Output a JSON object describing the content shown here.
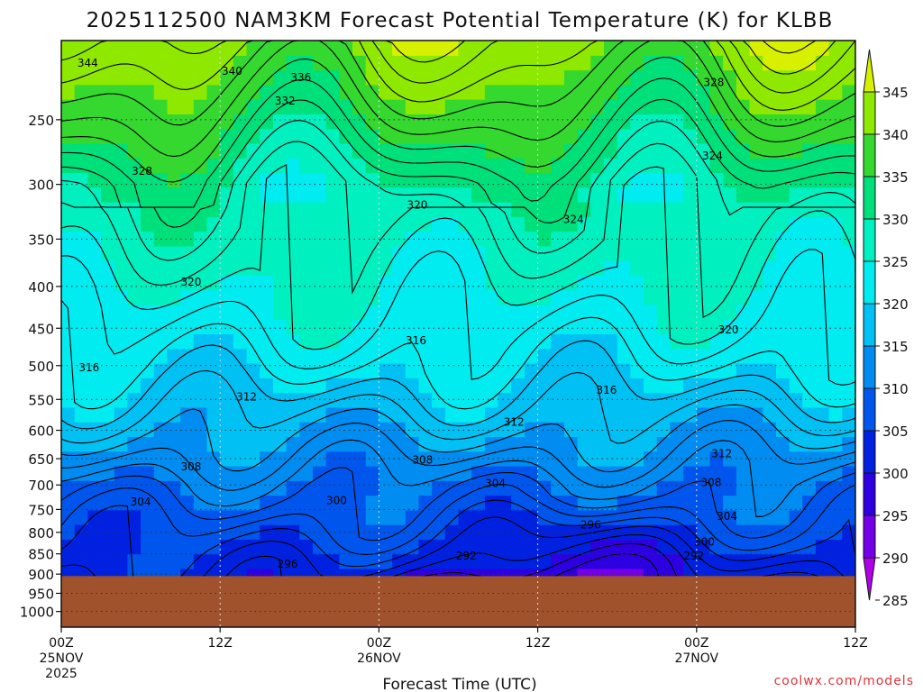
{
  "chart_data": {
    "type": "heatmap",
    "title": "2025112500 NAM3KM Forecast Potential Temperature (K) for KLBB",
    "xlabel": "Forecast Time (UTC)",
    "ylabel": "",
    "x_unit": "forecast hour",
    "xlim": [
      0,
      60
    ],
    "y_unit": "hPa",
    "y_scale": "log",
    "ylim": [
      1045,
      200
    ],
    "y_ticks": [
      {
        "value": 250,
        "label": "250"
      },
      {
        "value": 300,
        "label": "300"
      },
      {
        "value": 350,
        "label": "350"
      },
      {
        "value": 400,
        "label": "400"
      },
      {
        "value": 450,
        "label": "450"
      },
      {
        "value": 500,
        "label": "500"
      },
      {
        "value": 550,
        "label": "550"
      },
      {
        "value": 600,
        "label": "600"
      },
      {
        "value": 650,
        "label": "650"
      },
      {
        "value": 700,
        "label": "700"
      },
      {
        "value": 750,
        "label": "750"
      },
      {
        "value": 800,
        "label": "800"
      },
      {
        "value": 850,
        "label": "850"
      },
      {
        "value": 900,
        "label": "900"
      },
      {
        "value": 950,
        "label": "950"
      },
      {
        "value": 1000,
        "label": "1000"
      }
    ],
    "x_ticks": [
      {
        "value": 0,
        "label": "00Z",
        "label2": "25NOV",
        "label3": "2025"
      },
      {
        "value": 12,
        "label": "12Z",
        "label2": "",
        "label3": ""
      },
      {
        "value": 24,
        "label": "00Z",
        "label2": "26NOV",
        "label3": ""
      },
      {
        "value": 36,
        "label": "12Z",
        "label2": "",
        "label3": ""
      },
      {
        "value": 48,
        "label": "00Z",
        "label2": "27NOV",
        "label3": ""
      },
      {
        "value": 60,
        "label": "12Z",
        "label2": "",
        "label3": ""
      }
    ],
    "grid": true,
    "surface_pressure": 905,
    "surface_color": "#a0522d",
    "colorbar": {
      "ticks": [
        345,
        340,
        335,
        330,
        325,
        320,
        315,
        310,
        305,
        300,
        295,
        290,
        285
      ],
      "bands": [
        {
          "min": 340,
          "max": 345,
          "color": "#d7f000"
        },
        {
          "min": 335,
          "max": 340,
          "color": "#8fe800"
        },
        {
          "min": 330,
          "max": 335,
          "color": "#35d82e"
        },
        {
          "min": 325,
          "max": 330,
          "color": "#00e07a"
        },
        {
          "min": 320,
          "max": 325,
          "color": "#00f0c0"
        },
        {
          "min": 315,
          "max": 320,
          "color": "#00ecf0"
        },
        {
          "min": 310,
          "max": 315,
          "color": "#00c0f4"
        },
        {
          "min": 305,
          "max": 310,
          "color": "#008cf0"
        },
        {
          "min": 300,
          "max": 305,
          "color": "#0056ec"
        },
        {
          "min": 295,
          "max": 300,
          "color": "#0022e0"
        },
        {
          "min": 290,
          "max": 295,
          "color": "#2c00e0"
        },
        {
          "min": 285,
          "max": 290,
          "color": "#7400e8"
        },
        {
          "min": 280,
          "max": 285,
          "color": "#b000e8"
        }
      ]
    },
    "contour_labels": [
      {
        "label": "344",
        "x": 2.0,
        "p": 213
      },
      {
        "label": "340",
        "x": 12.9,
        "p": 218
      },
      {
        "label": "336",
        "x": 18.1,
        "p": 222
      },
      {
        "label": "332",
        "x": 16.9,
        "p": 237
      },
      {
        "label": "328",
        "x": 49.3,
        "p": 225
      },
      {
        "label": "328",
        "x": 6.1,
        "p": 289
      },
      {
        "label": "324",
        "x": 49.2,
        "p": 277
      },
      {
        "label": "324",
        "x": 38.7,
        "p": 331
      },
      {
        "label": "320",
        "x": 26.9,
        "p": 318
      },
      {
        "label": "320",
        "x": 9.8,
        "p": 395
      },
      {
        "label": "320",
        "x": 50.4,
        "p": 452
      },
      {
        "label": "316",
        "x": 26.8,
        "p": 466
      },
      {
        "label": "316",
        "x": 2.1,
        "p": 503
      },
      {
        "label": "316",
        "x": 41.2,
        "p": 536
      },
      {
        "label": "312",
        "x": 14.0,
        "p": 546
      },
      {
        "label": "312",
        "x": 34.2,
        "p": 586
      },
      {
        "label": "312",
        "x": 49.9,
        "p": 641
      },
      {
        "label": "308",
        "x": 9.8,
        "p": 665
      },
      {
        "label": "308",
        "x": 27.3,
        "p": 652
      },
      {
        "label": "308",
        "x": 49.1,
        "p": 695
      },
      {
        "label": "304",
        "x": 6.0,
        "p": 734
      },
      {
        "label": "304",
        "x": 32.8,
        "p": 697
      },
      {
        "label": "304",
        "x": 50.3,
        "p": 765
      },
      {
        "label": "300",
        "x": 20.8,
        "p": 731
      },
      {
        "label": "300",
        "x": 48.6,
        "p": 822
      },
      {
        "label": "296",
        "x": 40.0,
        "p": 783
      },
      {
        "label": "296",
        "x": 17.1,
        "p": 875
      },
      {
        "label": "292",
        "x": 30.6,
        "p": 855
      },
      {
        "label": "292",
        "x": 47.8,
        "p": 855
      }
    ]
  },
  "credit": "coolwx.com/models"
}
